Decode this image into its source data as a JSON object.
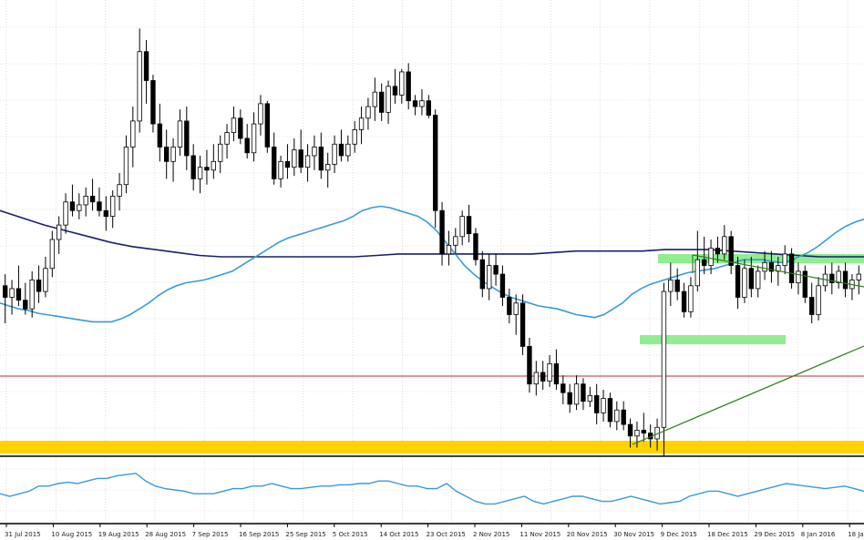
{
  "chart_data": {
    "type": "candlestick",
    "grid": true,
    "x_tick_labels": [
      "31 Jul 2015",
      "10 Aug 2015",
      "19 Aug 2015",
      "28 Aug 2015",
      "7 Sep 2015",
      "16 Sep 2015",
      "25 Sep 2015",
      "5 Oct 2015",
      "14 Oct 2015",
      "23 Oct 2015",
      "2 Nov 2015",
      "11 Nov 2015",
      "20 Nov 2015",
      "30 Nov 2015",
      "9 Dec 2015",
      "18 Dec 2015",
      "29 Dec 2015",
      "8 Jan 2016",
      "18 Ja"
    ],
    "candles": [
      [
        248,
        256,
        222,
        240
      ],
      [
        240,
        252,
        228,
        246
      ],
      [
        246,
        262,
        234,
        238
      ],
      [
        238,
        250,
        228,
        232
      ],
      [
        232,
        258,
        226,
        252
      ],
      [
        252,
        262,
        236,
        244
      ],
      [
        244,
        268,
        240,
        260
      ],
      [
        260,
        286,
        254,
        280
      ],
      [
        280,
        296,
        270,
        290
      ],
      [
        290,
        312,
        284,
        306
      ],
      [
        306,
        318,
        296,
        300
      ],
      [
        300,
        312,
        294,
        304
      ],
      [
        304,
        316,
        296,
        310
      ],
      [
        310,
        322,
        300,
        306
      ],
      [
        306,
        316,
        296,
        300
      ],
      [
        300,
        310,
        286,
        296
      ],
      [
        296,
        314,
        288,
        310
      ],
      [
        310,
        326,
        300,
        318
      ],
      [
        318,
        352,
        312,
        344
      ],
      [
        344,
        372,
        330,
        362
      ],
      [
        362,
        426,
        354,
        410
      ],
      [
        410,
        418,
        374,
        390
      ],
      [
        390,
        394,
        354,
        360
      ],
      [
        360,
        374,
        334,
        344
      ],
      [
        344,
        356,
        322,
        334
      ],
      [
        334,
        350,
        320,
        344
      ],
      [
        344,
        370,
        338,
        362
      ],
      [
        362,
        372,
        328,
        338
      ],
      [
        338,
        346,
        314,
        322
      ],
      [
        322,
        338,
        312,
        330
      ],
      [
        330,
        342,
        318,
        328
      ],
      [
        328,
        346,
        322,
        334
      ],
      [
        334,
        352,
        326,
        346
      ],
      [
        346,
        360,
        336,
        354
      ],
      [
        354,
        372,
        348,
        364
      ],
      [
        364,
        370,
        346,
        350
      ],
      [
        350,
        360,
        336,
        340
      ],
      [
        340,
        368,
        334,
        360
      ],
      [
        360,
        380,
        352,
        374
      ],
      [
        374,
        376,
        340,
        344
      ],
      [
        344,
        354,
        318,
        322
      ],
      [
        322,
        338,
        316,
        334
      ],
      [
        334,
        346,
        322,
        330
      ],
      [
        330,
        350,
        324,
        342
      ],
      [
        342,
        356,
        326,
        330
      ],
      [
        330,
        346,
        320,
        338
      ],
      [
        338,
        352,
        328,
        344
      ],
      [
        344,
        354,
        322,
        328
      ],
      [
        328,
        340,
        316,
        332
      ],
      [
        332,
        352,
        326,
        346
      ],
      [
        346,
        356,
        334,
        338
      ],
      [
        338,
        352,
        334,
        346
      ],
      [
        346,
        362,
        340,
        356
      ],
      [
        356,
        372,
        346,
        364
      ],
      [
        364,
        378,
        356,
        372
      ],
      [
        372,
        392,
        362,
        382
      ],
      [
        382,
        388,
        362,
        368
      ],
      [
        368,
        390,
        360,
        386
      ],
      [
        386,
        398,
        374,
        380
      ],
      [
        380,
        398,
        374,
        396
      ],
      [
        396,
        402,
        370,
        376
      ],
      [
        376,
        380,
        366,
        372
      ],
      [
        372,
        384,
        366,
        376
      ],
      [
        376,
        380,
        364,
        366
      ],
      [
        366,
        370,
        288,
        300
      ],
      [
        300,
        306,
        262,
        270
      ],
      [
        270,
        286,
        262,
        276
      ],
      [
        276,
        288,
        270,
        282
      ],
      [
        282,
        300,
        276,
        296
      ],
      [
        296,
        304,
        278,
        284
      ],
      [
        284,
        288,
        262,
        266
      ],
      [
        266,
        272,
        240,
        246
      ],
      [
        246,
        270,
        238,
        262
      ],
      [
        262,
        270,
        248,
        256
      ],
      [
        256,
        262,
        234,
        240
      ],
      [
        240,
        246,
        222,
        228
      ],
      [
        228,
        242,
        214,
        236
      ],
      [
        236,
        242,
        200,
        206
      ],
      [
        206,
        212,
        174,
        180
      ],
      [
        180,
        196,
        172,
        188
      ],
      [
        188,
        196,
        176,
        182
      ],
      [
        182,
        200,
        178,
        194
      ],
      [
        194,
        204,
        176,
        180
      ],
      [
        180,
        186,
        166,
        174
      ],
      [
        174,
        180,
        160,
        166
      ],
      [
        166,
        186,
        162,
        180
      ],
      [
        180,
        184,
        162,
        168
      ],
      [
        168,
        178,
        164,
        172
      ],
      [
        172,
        180,
        152,
        160
      ],
      [
        160,
        176,
        154,
        170
      ],
      [
        170,
        174,
        150,
        154
      ],
      [
        154,
        168,
        148,
        162
      ],
      [
        162,
        168,
        148,
        152
      ],
      [
        152,
        156,
        136,
        144
      ],
      [
        144,
        154,
        136,
        148
      ],
      [
        148,
        160,
        140,
        146
      ],
      [
        146,
        152,
        136,
        142
      ],
      [
        142,
        156,
        134,
        150
      ],
      [
        150,
        250,
        130,
        244
      ],
      [
        244,
        264,
        234,
        252
      ],
      [
        252,
        260,
        238,
        244
      ],
      [
        244,
        250,
        226,
        230
      ],
      [
        230,
        254,
        226,
        248
      ],
      [
        248,
        286,
        244,
        266
      ],
      [
        266,
        282,
        256,
        262
      ],
      [
        262,
        280,
        256,
        274
      ],
      [
        274,
        282,
        264,
        270
      ],
      [
        270,
        290,
        266,
        282
      ],
      [
        282,
        286,
        256,
        262
      ],
      [
        262,
        268,
        232,
        240
      ],
      [
        240,
        266,
        236,
        260
      ],
      [
        260,
        268,
        240,
        246
      ],
      [
        246,
        262,
        240,
        258
      ],
      [
        258,
        272,
        252,
        264
      ],
      [
        264,
        272,
        250,
        258
      ],
      [
        258,
        268,
        248,
        262
      ],
      [
        262,
        276,
        256,
        270
      ],
      [
        270,
        274,
        246,
        250
      ],
      [
        250,
        264,
        242,
        258
      ],
      [
        258,
        262,
        236,
        240
      ],
      [
        240,
        250,
        222,
        228
      ],
      [
        228,
        254,
        224,
        248
      ],
      [
        248,
        262,
        244,
        256
      ],
      [
        256,
        264,
        242,
        250
      ],
      [
        250,
        262,
        246,
        258
      ],
      [
        258,
        264,
        240,
        246
      ],
      [
        246,
        256,
        238,
        252
      ],
      [
        252,
        262,
        242,
        256
      ]
    ],
    "ma_fast": [
      236,
      234,
      232,
      231,
      229,
      228,
      227,
      226,
      225,
      224,
      223,
      223,
      223,
      225,
      228,
      232,
      236,
      241,
      245,
      248,
      250,
      251,
      252,
      254,
      256,
      258,
      262,
      266,
      270,
      274,
      278,
      281,
      283,
      285,
      287,
      289,
      291,
      293,
      296,
      300,
      302,
      303,
      302,
      300,
      298,
      296,
      292,
      286,
      278,
      270,
      262,
      256,
      251,
      247,
      243,
      240,
      238,
      236,
      234,
      233,
      232,
      230,
      228,
      227,
      226,
      228,
      232,
      236,
      242,
      246,
      249,
      251,
      253,
      255,
      257,
      258,
      259,
      260,
      262,
      264,
      266,
      266,
      266,
      265,
      264,
      265,
      268,
      271,
      275,
      280,
      285,
      289,
      292,
      294
    ],
    "ma_slow": [
      300,
      295,
      290,
      286,
      282,
      278,
      275,
      273,
      271,
      269,
      268,
      268,
      268,
      268,
      268,
      268,
      268,
      269,
      270,
      270,
      270,
      270,
      270,
      270,
      270,
      271,
      272,
      272,
      272,
      272,
      273,
      273,
      273,
      272,
      271,
      270,
      269,
      268,
      268,
      268
    ],
    "rsi": [
      52,
      50,
      52,
      54,
      58,
      58,
      60,
      61,
      60,
      62,
      64,
      64,
      66,
      67,
      68,
      62,
      58,
      56,
      55,
      54,
      52,
      52,
      52,
      54,
      56,
      56,
      58,
      58,
      60,
      58,
      56,
      56,
      57,
      58,
      58,
      59,
      59,
      60,
      60,
      62,
      62,
      60,
      58,
      58,
      56,
      56,
      60,
      54,
      50,
      46,
      44,
      44,
      46,
      48,
      50,
      46,
      44,
      46,
      48,
      50,
      50,
      48,
      46,
      46,
      48,
      50,
      48,
      46,
      44,
      45,
      46,
      50,
      52,
      54,
      54,
      52,
      50,
      52,
      54,
      56,
      58,
      60,
      59,
      58,
      57,
      56,
      57,
      58,
      56,
      54
    ]
  }
}
